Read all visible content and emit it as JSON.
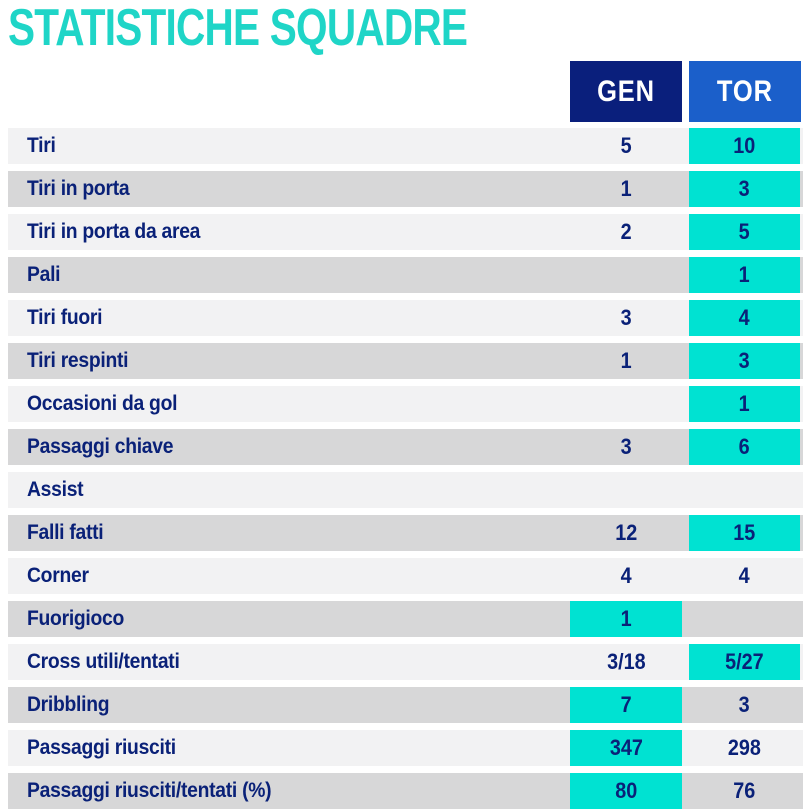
{
  "title": "STATISTICHE SQUADRE",
  "columns": [
    {
      "id": "gen",
      "label": "GEN",
      "color": "#0a1f7c"
    },
    {
      "id": "tor",
      "label": "TOR",
      "color": "#1b5fca"
    }
  ],
  "colors": {
    "title_cyan": "#1fd5c7",
    "highlight_cyan": "#00e2d2",
    "text_navy": "#0a2178",
    "gen_header_bg": "#0a1f7c",
    "tor_header_bg": "#1b5fca",
    "row_light": "#f2f2f3",
    "row_dark": "#d7d7d8"
  },
  "rows": [
    {
      "label": "Tiri",
      "gen": "5",
      "tor": "10",
      "highlight": "tor"
    },
    {
      "label": "Tiri in porta",
      "gen": "1",
      "tor": "3",
      "highlight": "tor"
    },
    {
      "label": "Tiri in porta da area",
      "gen": "2",
      "tor": "5",
      "highlight": "tor"
    },
    {
      "label": "Pali",
      "gen": "",
      "tor": "1",
      "highlight": "tor"
    },
    {
      "label": "Tiri fuori",
      "gen": "3",
      "tor": "4",
      "highlight": "tor"
    },
    {
      "label": "Tiri respinti",
      "gen": "1",
      "tor": "3",
      "highlight": "tor"
    },
    {
      "label": "Occasioni da gol",
      "gen": "",
      "tor": "1",
      "highlight": "tor"
    },
    {
      "label": "Passaggi chiave",
      "gen": "3",
      "tor": "6",
      "highlight": "tor"
    },
    {
      "label": "Assist",
      "gen": "",
      "tor": "",
      "highlight": "none"
    },
    {
      "label": "Falli fatti",
      "gen": "12",
      "tor": "15",
      "highlight": "tor"
    },
    {
      "label": "Corner",
      "gen": "4",
      "tor": "4",
      "highlight": "none"
    },
    {
      "label": "Fuorigioco",
      "gen": "1",
      "tor": "",
      "highlight": "gen"
    },
    {
      "label": "Cross utili/tentati",
      "gen": "3/18",
      "tor": "5/27",
      "highlight": "tor"
    },
    {
      "label": "Dribbling",
      "gen": "7",
      "tor": "3",
      "highlight": "gen"
    },
    {
      "label": "Passaggi riusciti",
      "gen": "347",
      "tor": "298",
      "highlight": "gen"
    },
    {
      "label": "Passaggi riusciti/tentati (%)",
      "gen": "80",
      "tor": "76",
      "highlight": "gen"
    }
  ]
}
